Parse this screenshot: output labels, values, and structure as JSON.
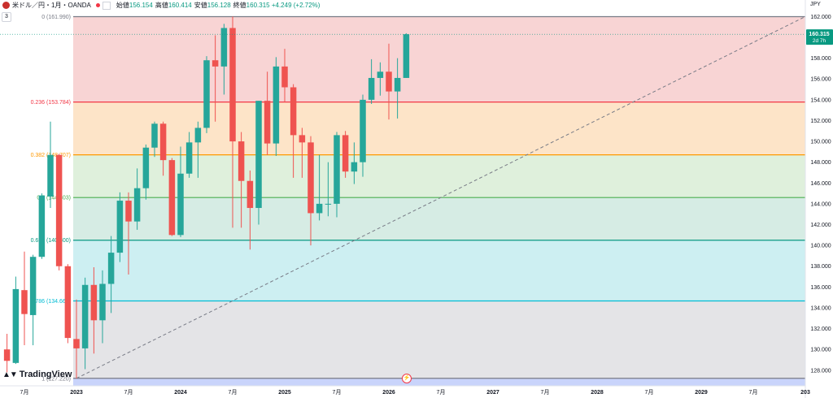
{
  "header": {
    "symbol": "米ドル／円・1月・OANDA",
    "open_label": "始値",
    "open": "156.154",
    "high_label": "高値",
    "high": "160.414",
    "low_label": "安値",
    "low": "156.128",
    "close_label": "終値",
    "close": "160.315",
    "change": "+4.249 (+2.72%)",
    "indicator_count": "3",
    "currency": "JPY",
    "brand": "TradingView",
    "brand_icon": "tradingview-logo-icon",
    "flag_icon": "us-jp-flag-icon",
    "event_icon": "lightning-icon"
  },
  "price_badge": {
    "value": "160.315",
    "countdown": "2d 7h",
    "color": "#089981"
  },
  "colors": {
    "up": "#26a69a",
    "down": "#ef5350"
  },
  "chart_data": {
    "type": "candlestick",
    "ylim": [
      126.5,
      162.5
    ],
    "y_ticks": [
      128,
      130,
      132,
      134,
      136,
      138,
      140,
      142,
      144,
      146,
      148,
      150,
      152,
      154,
      156,
      158,
      160,
      162
    ],
    "x_ticks": [
      {
        "t": 2022.5,
        "label": "7月"
      },
      {
        "t": 2023.0,
        "label": "2023"
      },
      {
        "t": 2023.5,
        "label": "7月"
      },
      {
        "t": 2024.0,
        "label": "2024"
      },
      {
        "t": 2024.5,
        "label": "7月"
      },
      {
        "t": 2025.0,
        "label": "2025"
      },
      {
        "t": 2025.5,
        "label": "7月"
      },
      {
        "t": 2026.0,
        "label": "2026"
      },
      {
        "t": 2026.5,
        "label": "7月"
      },
      {
        "t": 2027.0,
        "label": "2027"
      },
      {
        "t": 2027.5,
        "label": "7月"
      },
      {
        "t": 2028.0,
        "label": "2028"
      },
      {
        "t": 2028.5,
        "label": "7月"
      },
      {
        "t": 2029.0,
        "label": "2029"
      },
      {
        "t": 2029.5,
        "label": "7月"
      },
      {
        "t": 2030.0,
        "label": "203"
      }
    ],
    "fib_levels": [
      {
        "ratio": 0,
        "price": 161.99,
        "label": "0 (161.990)",
        "color": "#787b86",
        "fill": "#f8d4d4"
      },
      {
        "ratio": 0.236,
        "price": 153.784,
        "label": "0.236 (153.784)",
        "color": "#f23645",
        "fill": "#fde4c8"
      },
      {
        "ratio": 0.382,
        "price": 148.707,
        "label": "0.382 (148.707)",
        "color": "#ff9800",
        "fill": "#dff0dc"
      },
      {
        "ratio": 0.5,
        "price": 144.603,
        "label": "0.5 (144.603)",
        "color": "#4caf50",
        "fill": "#d6ece4"
      },
      {
        "ratio": 0.618,
        "price": 140.5,
        "label": "0.618 (140.500)",
        "color": "#089981",
        "fill": "#cdeff2"
      },
      {
        "ratio": 0.786,
        "price": 134.66,
        "label": "0.786 (134.660)",
        "color": "#00bcd4",
        "fill": "#e4e4e7"
      },
      {
        "ratio": 1,
        "price": 127.22,
        "label": "1 (127.220)",
        "color": "#787b86",
        "fill": "#c9d4fb"
      }
    ],
    "trend_line": {
      "from": {
        "t": 2023.0,
        "price": 127.22
      },
      "to": {
        "t": 2030.0,
        "price": 162.0
      }
    },
    "candles": [
      {
        "t": 2022.333,
        "o": 130.0,
        "h": 131.5,
        "l": 127.8,
        "c": 128.9
      },
      {
        "t": 2022.417,
        "o": 128.7,
        "h": 137.0,
        "l": 128.6,
        "c": 135.8
      },
      {
        "t": 2022.5,
        "o": 135.7,
        "h": 139.4,
        "l": 130.4,
        "c": 133.4
      },
      {
        "t": 2022.583,
        "o": 133.3,
        "h": 139.1,
        "l": 130.4,
        "c": 138.9
      },
      {
        "t": 2022.667,
        "o": 138.9,
        "h": 145.0,
        "l": 138.7,
        "c": 144.8
      },
      {
        "t": 2022.75,
        "o": 144.7,
        "h": 151.9,
        "l": 143.6,
        "c": 148.7
      },
      {
        "t": 2022.833,
        "o": 148.7,
        "h": 148.8,
        "l": 137.6,
        "c": 138.0
      },
      {
        "t": 2022.917,
        "o": 138.0,
        "h": 138.2,
        "l": 130.6,
        "c": 131.1
      },
      {
        "t": 2023.0,
        "o": 131.0,
        "h": 134.8,
        "l": 127.2,
        "c": 130.1
      },
      {
        "t": 2023.083,
        "o": 130.1,
        "h": 136.9,
        "l": 128.1,
        "c": 136.2
      },
      {
        "t": 2023.167,
        "o": 136.2,
        "h": 137.9,
        "l": 129.6,
        "c": 132.8
      },
      {
        "t": 2023.25,
        "o": 132.8,
        "h": 137.6,
        "l": 130.6,
        "c": 136.3
      },
      {
        "t": 2023.333,
        "o": 136.3,
        "h": 140.9,
        "l": 133.5,
        "c": 139.3
      },
      {
        "t": 2023.417,
        "o": 139.3,
        "h": 145.1,
        "l": 138.4,
        "c": 144.3
      },
      {
        "t": 2023.5,
        "o": 144.3,
        "h": 145.1,
        "l": 137.2,
        "c": 142.3
      },
      {
        "t": 2023.583,
        "o": 142.3,
        "h": 147.4,
        "l": 141.5,
        "c": 145.5
      },
      {
        "t": 2023.667,
        "o": 145.5,
        "h": 149.7,
        "l": 144.4,
        "c": 149.4
      },
      {
        "t": 2023.75,
        "o": 149.4,
        "h": 151.9,
        "l": 148.5,
        "c": 151.7
      },
      {
        "t": 2023.833,
        "o": 151.7,
        "h": 151.9,
        "l": 146.7,
        "c": 148.2
      },
      {
        "t": 2023.917,
        "o": 148.2,
        "h": 148.4,
        "l": 140.9,
        "c": 141.0
      },
      {
        "t": 2024.0,
        "o": 141.0,
        "h": 149.5,
        "l": 140.8,
        "c": 146.9
      },
      {
        "t": 2024.083,
        "o": 146.9,
        "h": 150.9,
        "l": 146.5,
        "c": 149.9
      },
      {
        "t": 2024.167,
        "o": 149.9,
        "h": 151.9,
        "l": 146.5,
        "c": 151.3
      },
      {
        "t": 2024.25,
        "o": 151.3,
        "h": 158.2,
        "l": 150.8,
        "c": 157.8
      },
      {
        "t": 2024.333,
        "o": 157.8,
        "h": 160.2,
        "l": 151.9,
        "c": 157.2
      },
      {
        "t": 2024.417,
        "o": 157.2,
        "h": 161.3,
        "l": 154.5,
        "c": 160.9
      },
      {
        "t": 2024.5,
        "o": 160.9,
        "h": 162.0,
        "l": 141.7,
        "c": 150.0
      },
      {
        "t": 2024.583,
        "o": 150.0,
        "h": 150.9,
        "l": 141.7,
        "c": 146.2
      },
      {
        "t": 2024.667,
        "o": 146.2,
        "h": 147.2,
        "l": 139.6,
        "c": 143.6
      },
      {
        "t": 2024.75,
        "o": 143.6,
        "h": 153.9,
        "l": 142.0,
        "c": 153.9
      },
      {
        "t": 2024.833,
        "o": 153.9,
        "h": 156.7,
        "l": 148.7,
        "c": 149.8
      },
      {
        "t": 2024.917,
        "o": 149.8,
        "h": 158.1,
        "l": 148.6,
        "c": 157.2
      },
      {
        "t": 2025.0,
        "o": 157.2,
        "h": 158.9,
        "l": 153.8,
        "c": 155.2
      },
      {
        "t": 2025.083,
        "o": 155.2,
        "h": 155.5,
        "l": 146.5,
        "c": 150.6
      },
      {
        "t": 2025.167,
        "o": 150.6,
        "h": 151.3,
        "l": 146.5,
        "c": 149.9
      },
      {
        "t": 2025.25,
        "o": 149.9,
        "h": 150.5,
        "l": 140.0,
        "c": 143.1
      },
      {
        "t": 2025.333,
        "o": 143.1,
        "h": 148.7,
        "l": 142.4,
        "c": 144.0
      },
      {
        "t": 2025.417,
        "o": 144.0,
        "h": 148.0,
        "l": 142.8,
        "c": 144.0
      },
      {
        "t": 2025.5,
        "o": 144.0,
        "h": 150.9,
        "l": 142.7,
        "c": 150.6
      },
      {
        "t": 2025.583,
        "o": 150.6,
        "h": 151.0,
        "l": 146.5,
        "c": 147.1
      },
      {
        "t": 2025.667,
        "o": 147.1,
        "h": 149.9,
        "l": 145.9,
        "c": 148.0
      },
      {
        "t": 2025.75,
        "o": 148.0,
        "h": 154.5,
        "l": 146.6,
        "c": 154.0
      },
      {
        "t": 2025.833,
        "o": 154.0,
        "h": 157.9,
        "l": 153.6,
        "c": 156.1
      },
      {
        "t": 2025.917,
        "o": 156.1,
        "h": 157.6,
        "l": 154.4,
        "c": 156.7
      },
      {
        "t": 2026.0,
        "o": 156.7,
        "h": 159.4,
        "l": 152.1,
        "c": 154.8
      },
      {
        "t": 2026.083,
        "o": 154.8,
        "h": 158.0,
        "l": 152.2,
        "c": 156.1
      },
      {
        "t": 2026.167,
        "o": 156.1,
        "h": 160.4,
        "l": 156.1,
        "c": 160.3
      }
    ]
  }
}
